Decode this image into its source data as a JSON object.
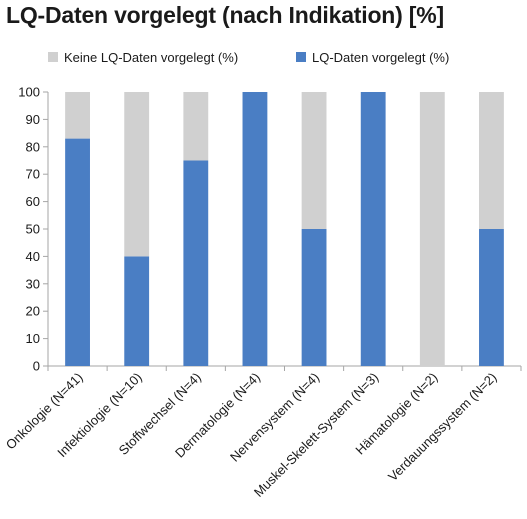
{
  "chart_data": {
    "type": "bar",
    "stacked": true,
    "title": "LQ-Daten vorgelegt (nach Indikation) [%]",
    "categories": [
      "Onkologie (N=41)",
      "Infektiologie (N=10)",
      "Stoffwechsel (N=4)",
      "Dermatologie (N=4)",
      "Nervensystem (N=4)",
      "Muskel-Skelett-System (N=3)",
      "Hämatologie (N=2)",
      "Verdauungssystem (N=2)"
    ],
    "series": [
      {
        "name": "LQ-Daten vorgelegt (%)",
        "color": "#4a7ec4",
        "values": [
          83,
          40,
          75,
          100,
          50,
          100,
          0,
          50
        ]
      },
      {
        "name": "Keine LQ-Daten vorgelegt (%)",
        "color": "#d0d0d0",
        "values": [
          17,
          60,
          25,
          0,
          50,
          0,
          100,
          50
        ]
      }
    ],
    "legend_order": [
      "Keine LQ-Daten vorgelegt (%)",
      "LQ-Daten vorgelegt (%)"
    ],
    "ylim": [
      0,
      100
    ],
    "yticks": [
      0,
      10,
      20,
      30,
      40,
      50,
      60,
      70,
      80,
      90,
      100
    ],
    "xlabel": "",
    "ylabel": "",
    "grid": false,
    "legend_position": "top"
  }
}
